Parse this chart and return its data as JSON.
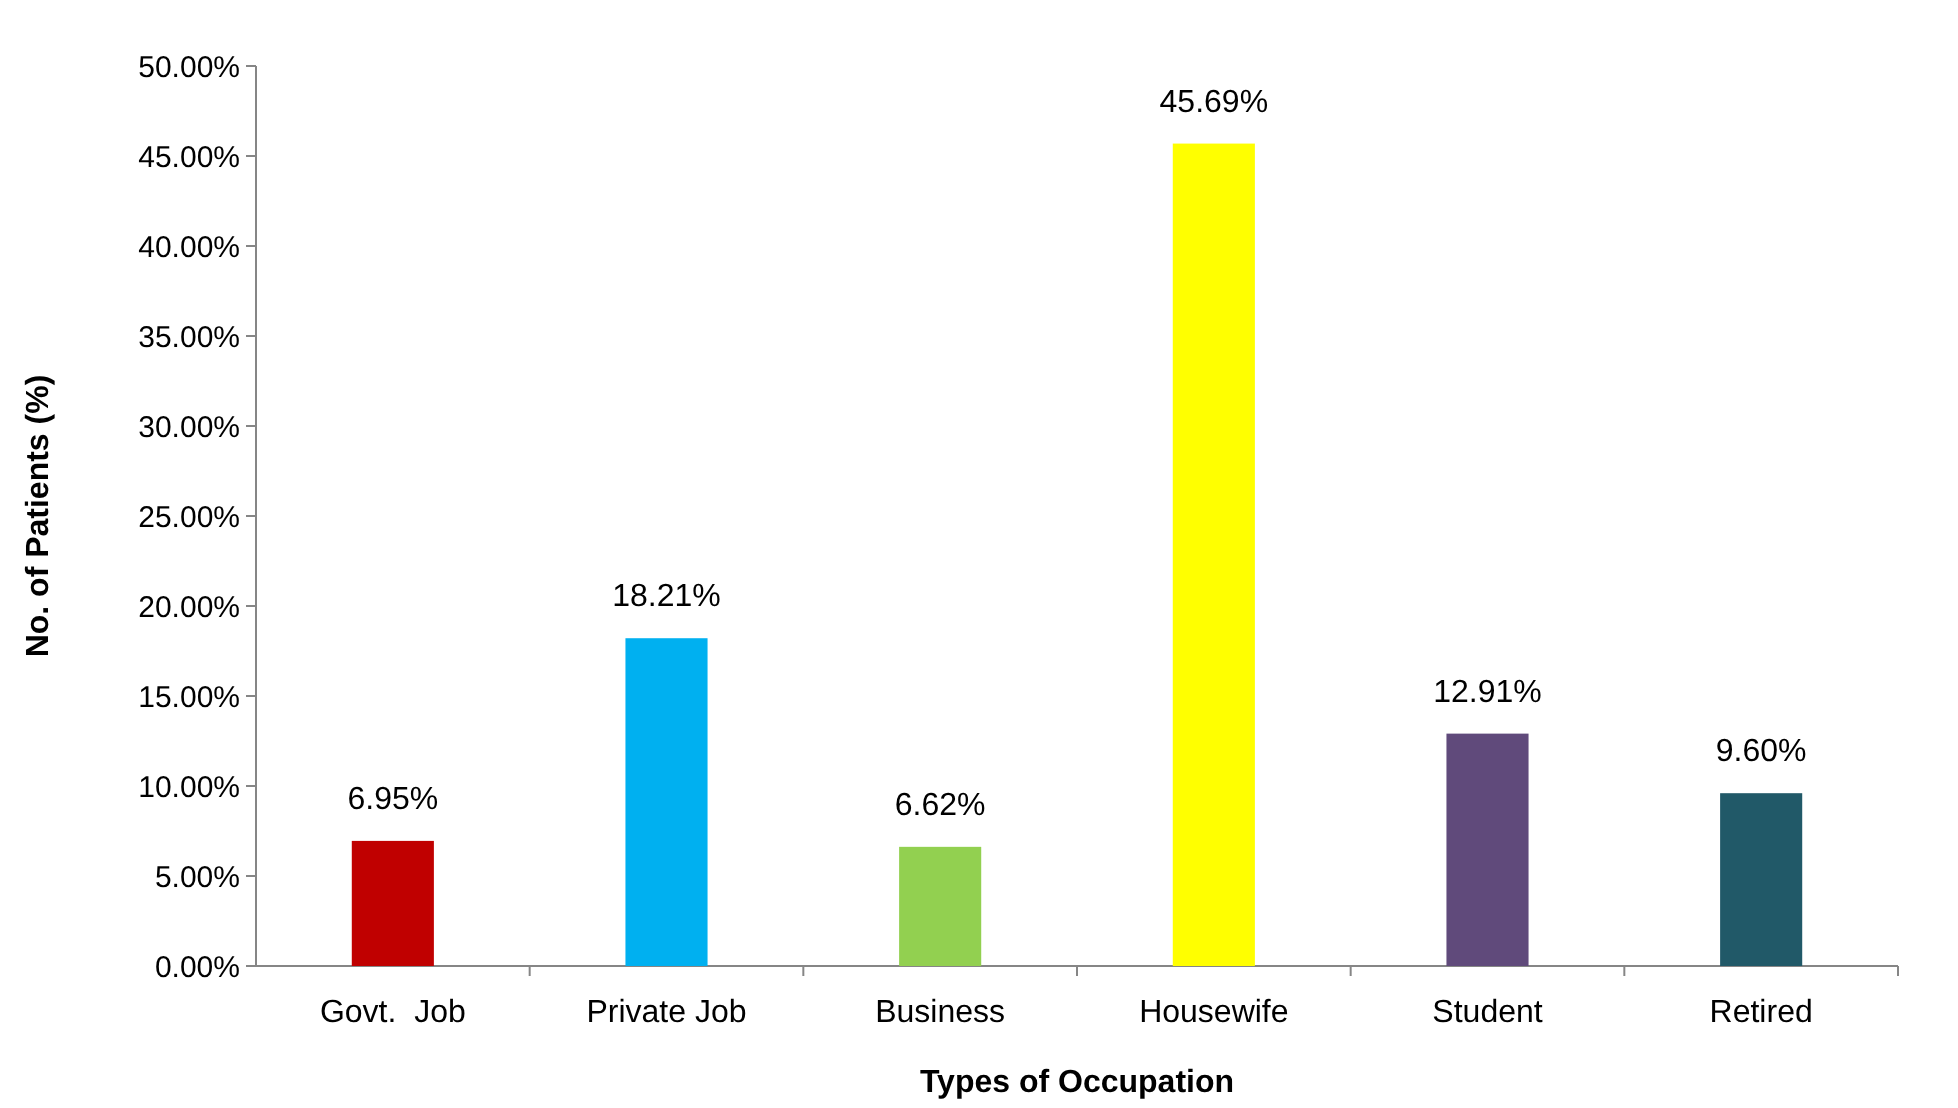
{
  "chart_data": {
    "type": "bar",
    "xlabel": "Types of Occupation",
    "ylabel": "No. of Patients (%)",
    "categories": [
      "Govt.  Job",
      "Private Job",
      "Business",
      "Housewife",
      "Student",
      "Retired"
    ],
    "values": [
      6.95,
      18.21,
      6.62,
      45.69,
      12.91,
      9.6
    ],
    "colors": [
      "#c00000",
      "#00b0f0",
      "#92d050",
      "#ffff00",
      "#604a7b",
      "#215968"
    ],
    "value_labels": [
      "6.95%",
      "18.21%",
      "6.62%",
      "45.69%",
      "12.91%",
      "9.60%"
    ],
    "ylim": [
      0,
      50
    ],
    "yticks": [
      {
        "value": 0,
        "label": "0.00%"
      },
      {
        "value": 5,
        "label": "5.00%"
      },
      {
        "value": 10,
        "label": "10.00%"
      },
      {
        "value": 15,
        "label": "15.00%"
      },
      {
        "value": 20,
        "label": "20.00%"
      },
      {
        "value": 25,
        "label": "25.00%"
      },
      {
        "value": 30,
        "label": "30.00%"
      },
      {
        "value": 35,
        "label": "35.00%"
      },
      {
        "value": 40,
        "label": "40.00%"
      },
      {
        "value": 45,
        "label": "45.00%"
      },
      {
        "value": 50,
        "label": "50.00%"
      }
    ],
    "grid": false
  }
}
